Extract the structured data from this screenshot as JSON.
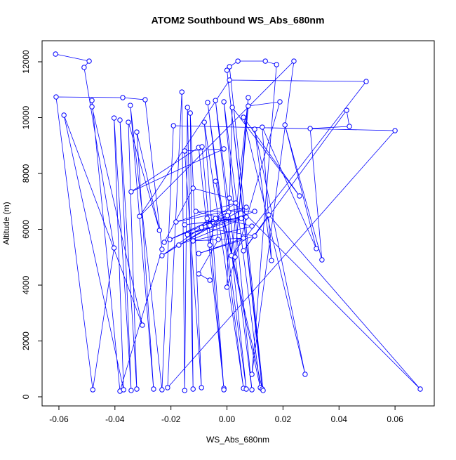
{
  "chart_data": {
    "type": "scatter",
    "title": "ATOM2 Southbound WS_Abs_680nm",
    "x_label": "WS_Abs_680nm",
    "y_label": "Altitude (m)",
    "color": "#0000ff",
    "lines": true,
    "xlim": [
      -0.066,
      0.074
    ],
    "ylim": [
      -327,
      12755
    ],
    "xticks": [
      -0.06,
      -0.04,
      -0.02,
      {
        "value": 0,
        "label": "0.00"
      },
      0.02,
      0.04,
      0.06
    ],
    "yticks": [
      0,
      2000,
      4000,
      6000,
      8000,
      10000,
      12000
    ],
    "x": [
      -0.0612,
      -0.0492,
      -0.051,
      -0.0403,
      -0.0479,
      -0.061,
      -0.0372,
      -0.0292,
      -0.0232,
      -0.0382,
      -0.0482,
      -0.0482,
      -0.0302,
      -0.0582,
      -0.0369,
      -0.0403,
      -0.0342,
      -0.0382,
      -0.0322,
      -0.0352,
      -0.0241,
      -0.0322,
      -0.0262,
      -0.0345,
      -0.0232,
      -0.0191,
      0.06,
      -0.0212,
      -0.0161,
      -0.0151,
      -0.0141,
      -0.0121,
      -0.0131,
      -0.0091,
      -0.0151,
      -0.0011,
      -0.0342,
      -0.0101,
      -0.0011,
      -0.0089,
      -0.0011,
      -0.0081,
      0.0059,
      -0.0069,
      0.0069,
      -0.0041,
      0.0089,
      -0.0011,
      0.0119,
      -0.0041,
      0.0126,
      0,
      0.0129,
      0.0009,
      0.0039,
      0.0137,
      0.0177,
      0.0089,
      0.0239,
      -0.0312,
      0.0009,
      0.0497,
      0.0016,
      0.0076,
      0.0029,
      0.0076,
      0.0189,
      0,
      0.0019,
      0.0259,
      0.0059,
      0.0279,
      0.0099,
      0.0159,
      0.0126,
      0.0319,
      0.0207,
      0.0339,
      0.0297,
      0.0437,
      0.0427,
      0.0059,
      0.0149,
      0.069,
      0.0009,
      -0.0121,
      -0.0224,
      0.0006,
      -0.0204,
      0.0001,
      -0.0232,
      0.0031,
      -0.0182,
      0.0069,
      -0.0172,
      0.0069,
      -0.0151,
      0.0051,
      -0.0141,
      0.0099,
      -0.0111,
      0.0089,
      -0.0121,
      0.0059,
      -0.0101,
      0.0099,
      -0.0091,
      -0.0071,
      -0.0061,
      -0.0061,
      -0.0041,
      -0.0031,
      -0.0101,
      -0.0061
    ],
    "values": [
      12277,
      12025,
      11799,
      5333,
      252,
      10742,
      10717,
      10642,
      5283,
      201,
      10616,
      10390,
      2566,
      10088,
      252,
      9987,
      226,
      9912,
      277,
      9836,
      5962,
      9484,
      277,
      10440,
      252,
      9711,
      9535,
      327,
      10918,
      226,
      10365,
      277,
      10164,
      327,
      8805,
      8881,
      7346,
      8931,
      302,
      8956,
      252,
      9836,
      302,
      10541,
      277,
      10616,
      252,
      10566,
      327,
      7723,
      277,
      11698,
      226,
      11824,
      12025,
      12025,
      11899,
      805,
      12025,
      6465,
      11346,
      11296,
      5057,
      10717,
      5006,
      10415,
      10566,
      3925,
      10365,
      7195,
      10013,
      805,
      9585,
      4881,
      9660,
      5308,
      9736,
      4906,
      9610,
      9686,
      10264,
      5233,
      6516,
      277,
      7119,
      7472,
      5535,
      6616,
      5635,
      6491,
      5057,
      6943,
      6264,
      6792,
      5434,
      6440,
      6164,
      6390,
      5811,
      6642,
      6642,
      6113,
      5585,
      5686,
      5132,
      5761,
      6063,
      6390,
      6138,
      5434,
      6390,
      5635,
      4403,
      4176
    ]
  }
}
